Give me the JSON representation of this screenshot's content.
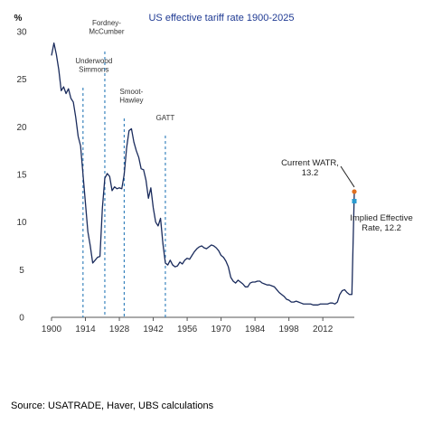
{
  "chart_data": {
    "type": "line",
    "title": "US effective tariff rate 1900-2025",
    "ylabel": "%",
    "xlabel": "",
    "xlim": [
      1900,
      2025
    ],
    "ylim": [
      0,
      30
    ],
    "x_ticks": [
      "1900",
      "1914",
      "1928",
      "1942",
      "1956",
      "1970",
      "1984",
      "1998",
      "2012"
    ],
    "y_ticks": [
      "0",
      "5",
      "10",
      "15",
      "20",
      "25",
      "30"
    ],
    "grid": false,
    "colors": {
      "line": "#1a2b5c",
      "vlines": "#2a7ab8",
      "current_marker": "#e07020",
      "implied_marker": "#2a9bd0"
    },
    "series": [
      {
        "values": [
          [
            1900,
            27.5
          ],
          [
            1901,
            28.8
          ],
          [
            1902,
            27.6
          ],
          [
            1903,
            26.0
          ],
          [
            1904,
            23.8
          ],
          [
            1905,
            24.2
          ],
          [
            1906,
            23.5
          ],
          [
            1907,
            24.0
          ],
          [
            1908,
            23.0
          ],
          [
            1909,
            22.6
          ],
          [
            1910,
            21.0
          ],
          [
            1911,
            19.0
          ],
          [
            1912,
            18.0
          ],
          [
            1913,
            15.0
          ],
          [
            1914,
            12.0
          ],
          [
            1915,
            9.0
          ],
          [
            1916,
            7.5
          ],
          [
            1917,
            5.7
          ],
          [
            1918,
            6.0
          ],
          [
            1919,
            6.3
          ],
          [
            1920,
            6.4
          ],
          [
            1921,
            11.5
          ],
          [
            1922,
            14.6
          ],
          [
            1923,
            15.1
          ],
          [
            1924,
            14.8
          ],
          [
            1925,
            13.3
          ],
          [
            1926,
            13.7
          ],
          [
            1927,
            13.5
          ],
          [
            1928,
            13.6
          ],
          [
            1929,
            13.5
          ],
          [
            1930,
            15.0
          ],
          [
            1931,
            17.8
          ],
          [
            1932,
            19.6
          ],
          [
            1933,
            19.8
          ],
          [
            1934,
            18.4
          ],
          [
            1935,
            17.5
          ],
          [
            1936,
            16.8
          ],
          [
            1937,
            15.6
          ],
          [
            1938,
            15.5
          ],
          [
            1939,
            14.4
          ],
          [
            1940,
            12.5
          ],
          [
            1941,
            13.6
          ],
          [
            1942,
            11.5
          ],
          [
            1943,
            10.0
          ],
          [
            1944,
            9.6
          ],
          [
            1945,
            10.4
          ],
          [
            1946,
            7.7
          ],
          [
            1947,
            5.7
          ],
          [
            1948,
            5.5
          ],
          [
            1949,
            6.0
          ],
          [
            1950,
            5.5
          ],
          [
            1951,
            5.3
          ],
          [
            1952,
            5.4
          ],
          [
            1953,
            5.8
          ],
          [
            1954,
            5.6
          ],
          [
            1955,
            6.0
          ],
          [
            1956,
            6.2
          ],
          [
            1957,
            6.1
          ],
          [
            1958,
            6.5
          ],
          [
            1959,
            6.9
          ],
          [
            1960,
            7.2
          ],
          [
            1961,
            7.4
          ],
          [
            1962,
            7.5
          ],
          [
            1963,
            7.3
          ],
          [
            1964,
            7.2
          ],
          [
            1965,
            7.4
          ],
          [
            1966,
            7.6
          ],
          [
            1967,
            7.5
          ],
          [
            1968,
            7.3
          ],
          [
            1969,
            7.0
          ],
          [
            1970,
            6.5
          ],
          [
            1971,
            6.3
          ],
          [
            1972,
            5.9
          ],
          [
            1973,
            5.3
          ],
          [
            1974,
            4.2
          ],
          [
            1975,
            3.8
          ],
          [
            1976,
            3.6
          ],
          [
            1977,
            3.9
          ],
          [
            1978,
            3.7
          ],
          [
            1979,
            3.5
          ],
          [
            1980,
            3.2
          ],
          [
            1981,
            3.2
          ],
          [
            1982,
            3.6
          ],
          [
            1983,
            3.7
          ],
          [
            1984,
            3.7
          ],
          [
            1985,
            3.8
          ],
          [
            1986,
            3.8
          ],
          [
            1987,
            3.6
          ],
          [
            1988,
            3.5
          ],
          [
            1989,
            3.4
          ],
          [
            1990,
            3.4
          ],
          [
            1991,
            3.3
          ],
          [
            1992,
            3.2
          ],
          [
            1993,
            2.9
          ],
          [
            1994,
            2.6
          ],
          [
            1995,
            2.4
          ],
          [
            1996,
            2.2
          ],
          [
            1997,
            1.9
          ],
          [
            1998,
            1.8
          ],
          [
            1999,
            1.6
          ],
          [
            2000,
            1.6
          ],
          [
            2001,
            1.7
          ],
          [
            2002,
            1.6
          ],
          [
            2003,
            1.5
          ],
          [
            2004,
            1.4
          ],
          [
            2005,
            1.4
          ],
          [
            2006,
            1.4
          ],
          [
            2007,
            1.4
          ],
          [
            2008,
            1.3
          ],
          [
            2009,
            1.3
          ],
          [
            2010,
            1.3
          ],
          [
            2011,
            1.4
          ],
          [
            2012,
            1.4
          ],
          [
            2013,
            1.4
          ],
          [
            2014,
            1.4
          ],
          [
            2015,
            1.5
          ],
          [
            2016,
            1.5
          ],
          [
            2017,
            1.4
          ],
          [
            2018,
            1.6
          ],
          [
            2019,
            2.4
          ],
          [
            2020,
            2.8
          ],
          [
            2021,
            2.9
          ],
          [
            2022,
            2.6
          ],
          [
            2023,
            2.4
          ],
          [
            2024,
            2.4
          ],
          [
            2025,
            13.2
          ]
        ]
      }
    ],
    "events": [
      {
        "year": 1913,
        "label_lines": [
          "Underwood",
          "Simmons"
        ]
      },
      {
        "year": 1922,
        "label_lines": [
          "Fordney-",
          "McCumber"
        ]
      },
      {
        "year": 1930,
        "label_lines": [
          "Smoot-",
          "Hawley"
        ]
      },
      {
        "year": 1947,
        "label_lines": [
          "GATT"
        ]
      }
    ],
    "annotations": {
      "current": {
        "year": 2025,
        "value": 13.2,
        "label_lines": [
          "Current WATR,",
          "13.2"
        ]
      },
      "implied": {
        "year": 2025,
        "value": 12.2,
        "label_lines": [
          "Implied Effective",
          "Rate, 12.2"
        ]
      }
    }
  },
  "source": "Source: USATRADE, Haver, UBS calculations"
}
